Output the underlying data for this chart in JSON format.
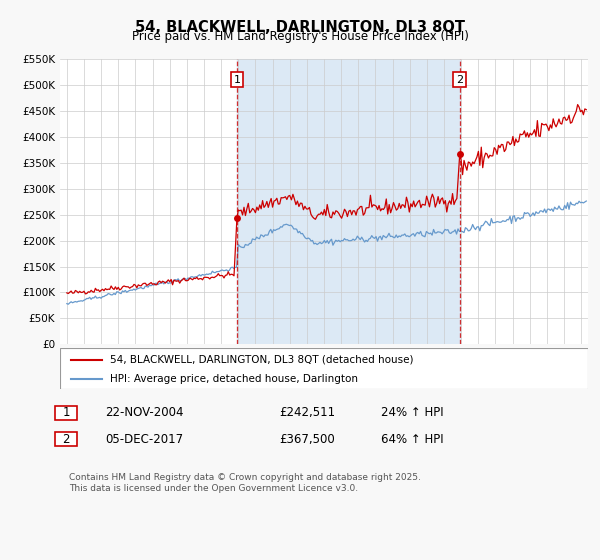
{
  "title": "54, BLACKWELL, DARLINGTON, DL3 8QT",
  "subtitle": "Price paid vs. HM Land Registry's House Price Index (HPI)",
  "background_color": "#f8f8f8",
  "plot_bg_color": "#ffffff",
  "grid_color": "#cccccc",
  "highlight_color": "#dce9f5",
  "red_color": "#cc0000",
  "blue_color": "#6699cc",
  "marker1_date": 2004.92,
  "marker1_value": 242511,
  "marker2_date": 2017.92,
  "marker2_value": 367500,
  "vline1_date": 2004.92,
  "vline2_date": 2017.92,
  "legend_label_red": "54, BLACKWELL, DARLINGTON, DL3 8QT (detached house)",
  "legend_label_blue": "HPI: Average price, detached house, Darlington",
  "table_row1": [
    "1",
    "22-NOV-2004",
    "£242,511",
    "24% ↑ HPI"
  ],
  "table_row2": [
    "2",
    "05-DEC-2017",
    "£367,500",
    "64% ↑ HPI"
  ],
  "footer": "Contains HM Land Registry data © Crown copyright and database right 2025.\nThis data is licensed under the Open Government Licence v3.0.",
  "ylim": [
    0,
    550000
  ],
  "yticks": [
    0,
    50000,
    100000,
    150000,
    200000,
    250000,
    300000,
    350000,
    400000,
    450000,
    500000,
    550000
  ],
  "ytick_labels": [
    "£0",
    "£50K",
    "£100K",
    "£150K",
    "£200K",
    "£250K",
    "£300K",
    "£350K",
    "£400K",
    "£450K",
    "£500K",
    "£550K"
  ],
  "xlim_min": 1994.6,
  "xlim_max": 2025.4
}
